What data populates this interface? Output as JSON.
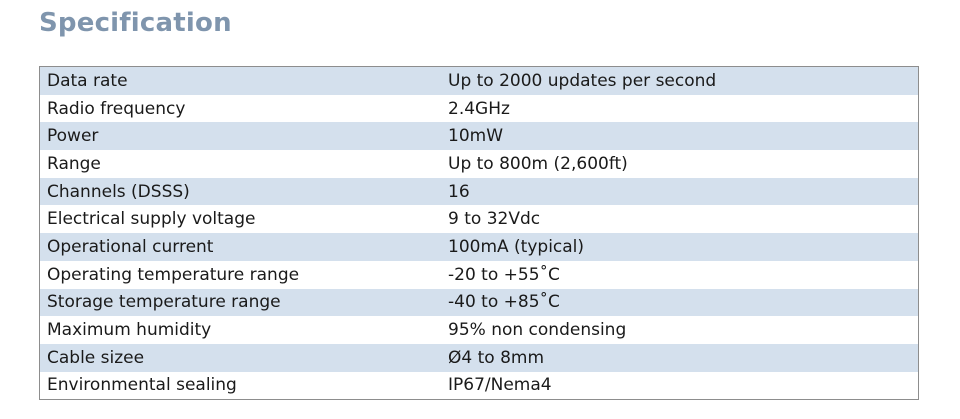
{
  "title": "Specification",
  "rows": [
    {
      "parameter": "Data rate",
      "value": "Up to 2000 updates per second"
    },
    {
      "parameter": "Radio frequency",
      "value": "2.4GHz"
    },
    {
      "parameter": "Power",
      "value": "10mW"
    },
    {
      "parameter": "Range",
      "value": "Up to 800m (2,600ft)"
    },
    {
      "parameter": "Channels (DSSS)",
      "value": "16"
    },
    {
      "parameter": "Electrical supply voltage",
      "value": "9 to 32Vdc"
    },
    {
      "parameter": "Operational current",
      "value": "100mA (typical)"
    },
    {
      "parameter": "Operating temperature range",
      "value": "-20 to +55˚C"
    },
    {
      "parameter": "Storage temperature range",
      "value": "-40 to +85˚C"
    },
    {
      "parameter": "Maximum humidity",
      "value": "95% non condensing"
    },
    {
      "parameter": "Cable sizee",
      "value": "Ø4 to 8mm"
    },
    {
      "parameter": "Environmental sealing",
      "value": "IP67/Nema4"
    }
  ],
  "colors": {
    "title": "#7f95ad",
    "row_stripe": "#d4e0ed",
    "border": "#8d8d8d"
  }
}
